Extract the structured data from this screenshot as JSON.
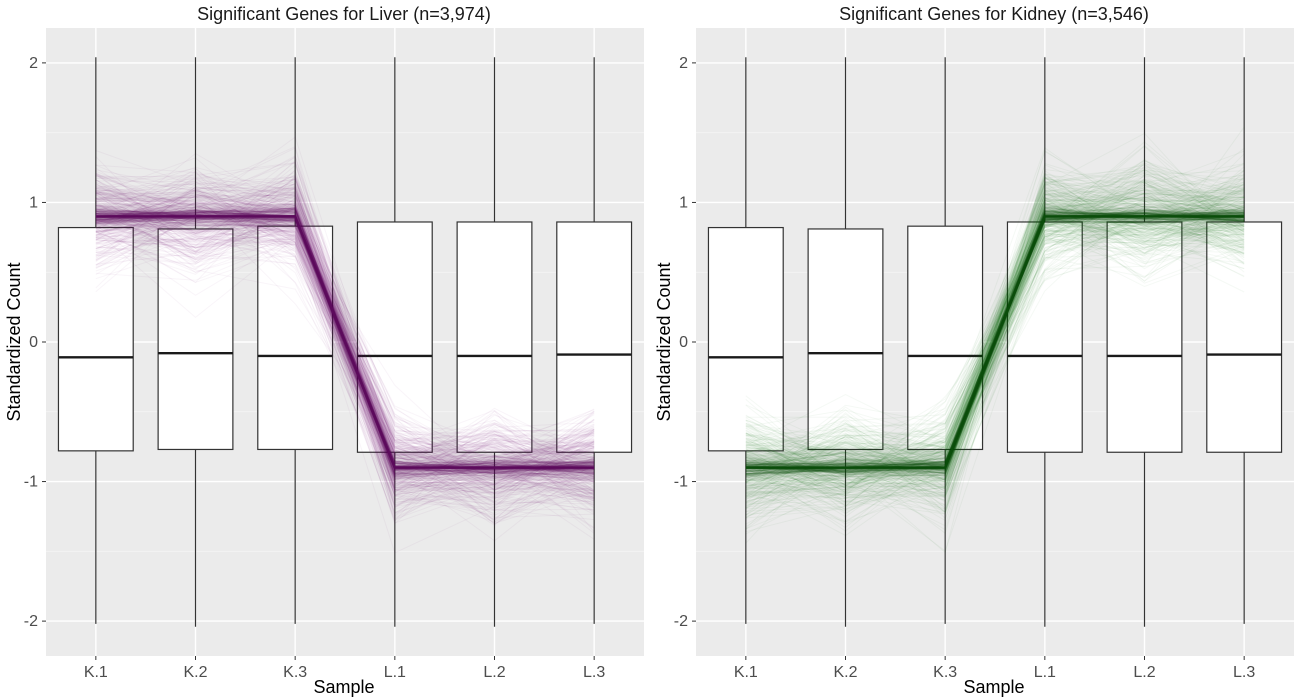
{
  "chart_data": [
    {
      "type": "box",
      "title": "Significant Genes for Liver (n=3,974)",
      "xlabel": "Sample",
      "ylabel": "Standardized Count",
      "categories": [
        "K.1",
        "K.2",
        "K.3",
        "L.1",
        "L.2",
        "L.3"
      ],
      "ylim": [
        -2.25,
        2.25
      ],
      "yticks": [
        -2,
        -1,
        0,
        1,
        2
      ],
      "grid": true,
      "boxes": [
        {
          "label": "K.1",
          "min": -2.02,
          "q1": -0.78,
          "median": -0.11,
          "q3": 0.82,
          "max": 2.04
        },
        {
          "label": "K.2",
          "min": -2.04,
          "q1": -0.77,
          "median": -0.08,
          "q3": 0.81,
          "max": 2.04
        },
        {
          "label": "K.3",
          "min": -2.02,
          "q1": -0.77,
          "median": -0.1,
          "q3": 0.83,
          "max": 2.04
        },
        {
          "label": "L.1",
          "min": -2.04,
          "q1": -0.79,
          "median": -0.1,
          "q3": 0.86,
          "max": 2.04
        },
        {
          "label": "L.2",
          "min": -2.04,
          "q1": -0.79,
          "median": -0.1,
          "q3": 0.86,
          "max": 2.04
        },
        {
          "label": "L.3",
          "min": -2.02,
          "q1": -0.79,
          "median": -0.09,
          "q3": 0.86,
          "max": 2.04
        }
      ],
      "trend_line": {
        "values": [
          0.9,
          0.9,
          0.9,
          -0.9,
          -0.9,
          -0.9
        ],
        "color": "#5c0a5c"
      },
      "line_color": "#6b1a6b"
    },
    {
      "type": "box",
      "title": "Significant Genes for Kidney (n=3,546)",
      "xlabel": "Sample",
      "ylabel": "Standardized Count",
      "categories": [
        "K.1",
        "K.2",
        "K.3",
        "L.1",
        "L.2",
        "L.3"
      ],
      "ylim": [
        -2.25,
        2.25
      ],
      "yticks": [
        -2,
        -1,
        0,
        1,
        2
      ],
      "grid": true,
      "boxes": [
        {
          "label": "K.1",
          "min": -2.02,
          "q1": -0.78,
          "median": -0.11,
          "q3": 0.82,
          "max": 2.04
        },
        {
          "label": "K.2",
          "min": -2.04,
          "q1": -0.77,
          "median": -0.08,
          "q3": 0.81,
          "max": 2.04
        },
        {
          "label": "K.3",
          "min": -2.02,
          "q1": -0.77,
          "median": -0.1,
          "q3": 0.83,
          "max": 2.04
        },
        {
          "label": "L.1",
          "min": -2.04,
          "q1": -0.79,
          "median": -0.1,
          "q3": 0.86,
          "max": 2.04
        },
        {
          "label": "L.2",
          "min": -2.04,
          "q1": -0.79,
          "median": -0.1,
          "q3": 0.86,
          "max": 2.04
        },
        {
          "label": "L.3",
          "min": -2.02,
          "q1": -0.79,
          "median": -0.09,
          "q3": 0.86,
          "max": 2.04
        }
      ],
      "trend_line": {
        "values": [
          -0.9,
          -0.9,
          -0.9,
          0.9,
          0.9,
          0.9
        ],
        "color": "#0a4d0a"
      },
      "line_color": "#1f6b1f"
    }
  ]
}
